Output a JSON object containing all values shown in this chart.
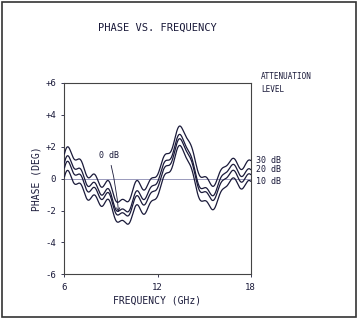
{
  "title": "PHASE VS. FREQUENCY",
  "xlabel": "FREQUENCY (GHz)",
  "ylabel": "PHASE (DEG)",
  "xlim": [
    6,
    18
  ],
  "ylim": [
    -6,
    6
  ],
  "yticks": [
    -6,
    -4,
    -2,
    0,
    2,
    4,
    6
  ],
  "ytick_labels": [
    "-6",
    "-4",
    "-2",
    "0",
    "+2",
    "+4",
    "+6"
  ],
  "xticks": [
    6,
    12,
    18
  ],
  "attenuation_label": "ATTENUATION\nLEVEL",
  "line_labels": [
    "30 dB",
    "20 dB",
    "10 dB"
  ],
  "annotation_text": "0 dB",
  "line_color": "#1a1a3a",
  "bg_color": "#ffffff",
  "zero_line_color": "#9999bb",
  "title_color": "#1a1a3a",
  "label_color": "#1a1a3a"
}
